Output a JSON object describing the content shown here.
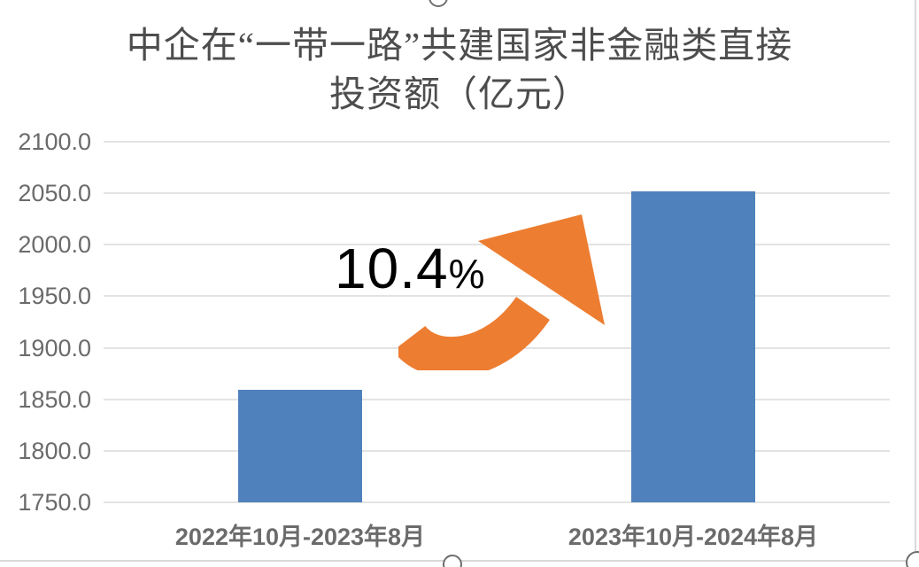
{
  "chart_data": {
    "type": "bar",
    "title": "中企在“一带一路”共建国家非金融类直接\n投资额（亿元）",
    "categories": [
      "2022年10月-2023年8月",
      "2023年10月-2024年8月"
    ],
    "values": [
      1859,
      2052
    ],
    "ylabel": "",
    "xlabel": "",
    "ylim": [
      1750,
      2100
    ],
    "ytick_labels": [
      "2100.0",
      "2050.0",
      "2000.0",
      "1950.0",
      "1900.0",
      "1850.0",
      "1800.0",
      "1750.0"
    ],
    "grid": true,
    "legend": false,
    "bar_color": "#4F81BD",
    "gridline_color": "#e3e3e3",
    "annotation": {
      "value": "10.4",
      "suffix": "%",
      "arrow_color": "#ED7D31"
    }
  }
}
